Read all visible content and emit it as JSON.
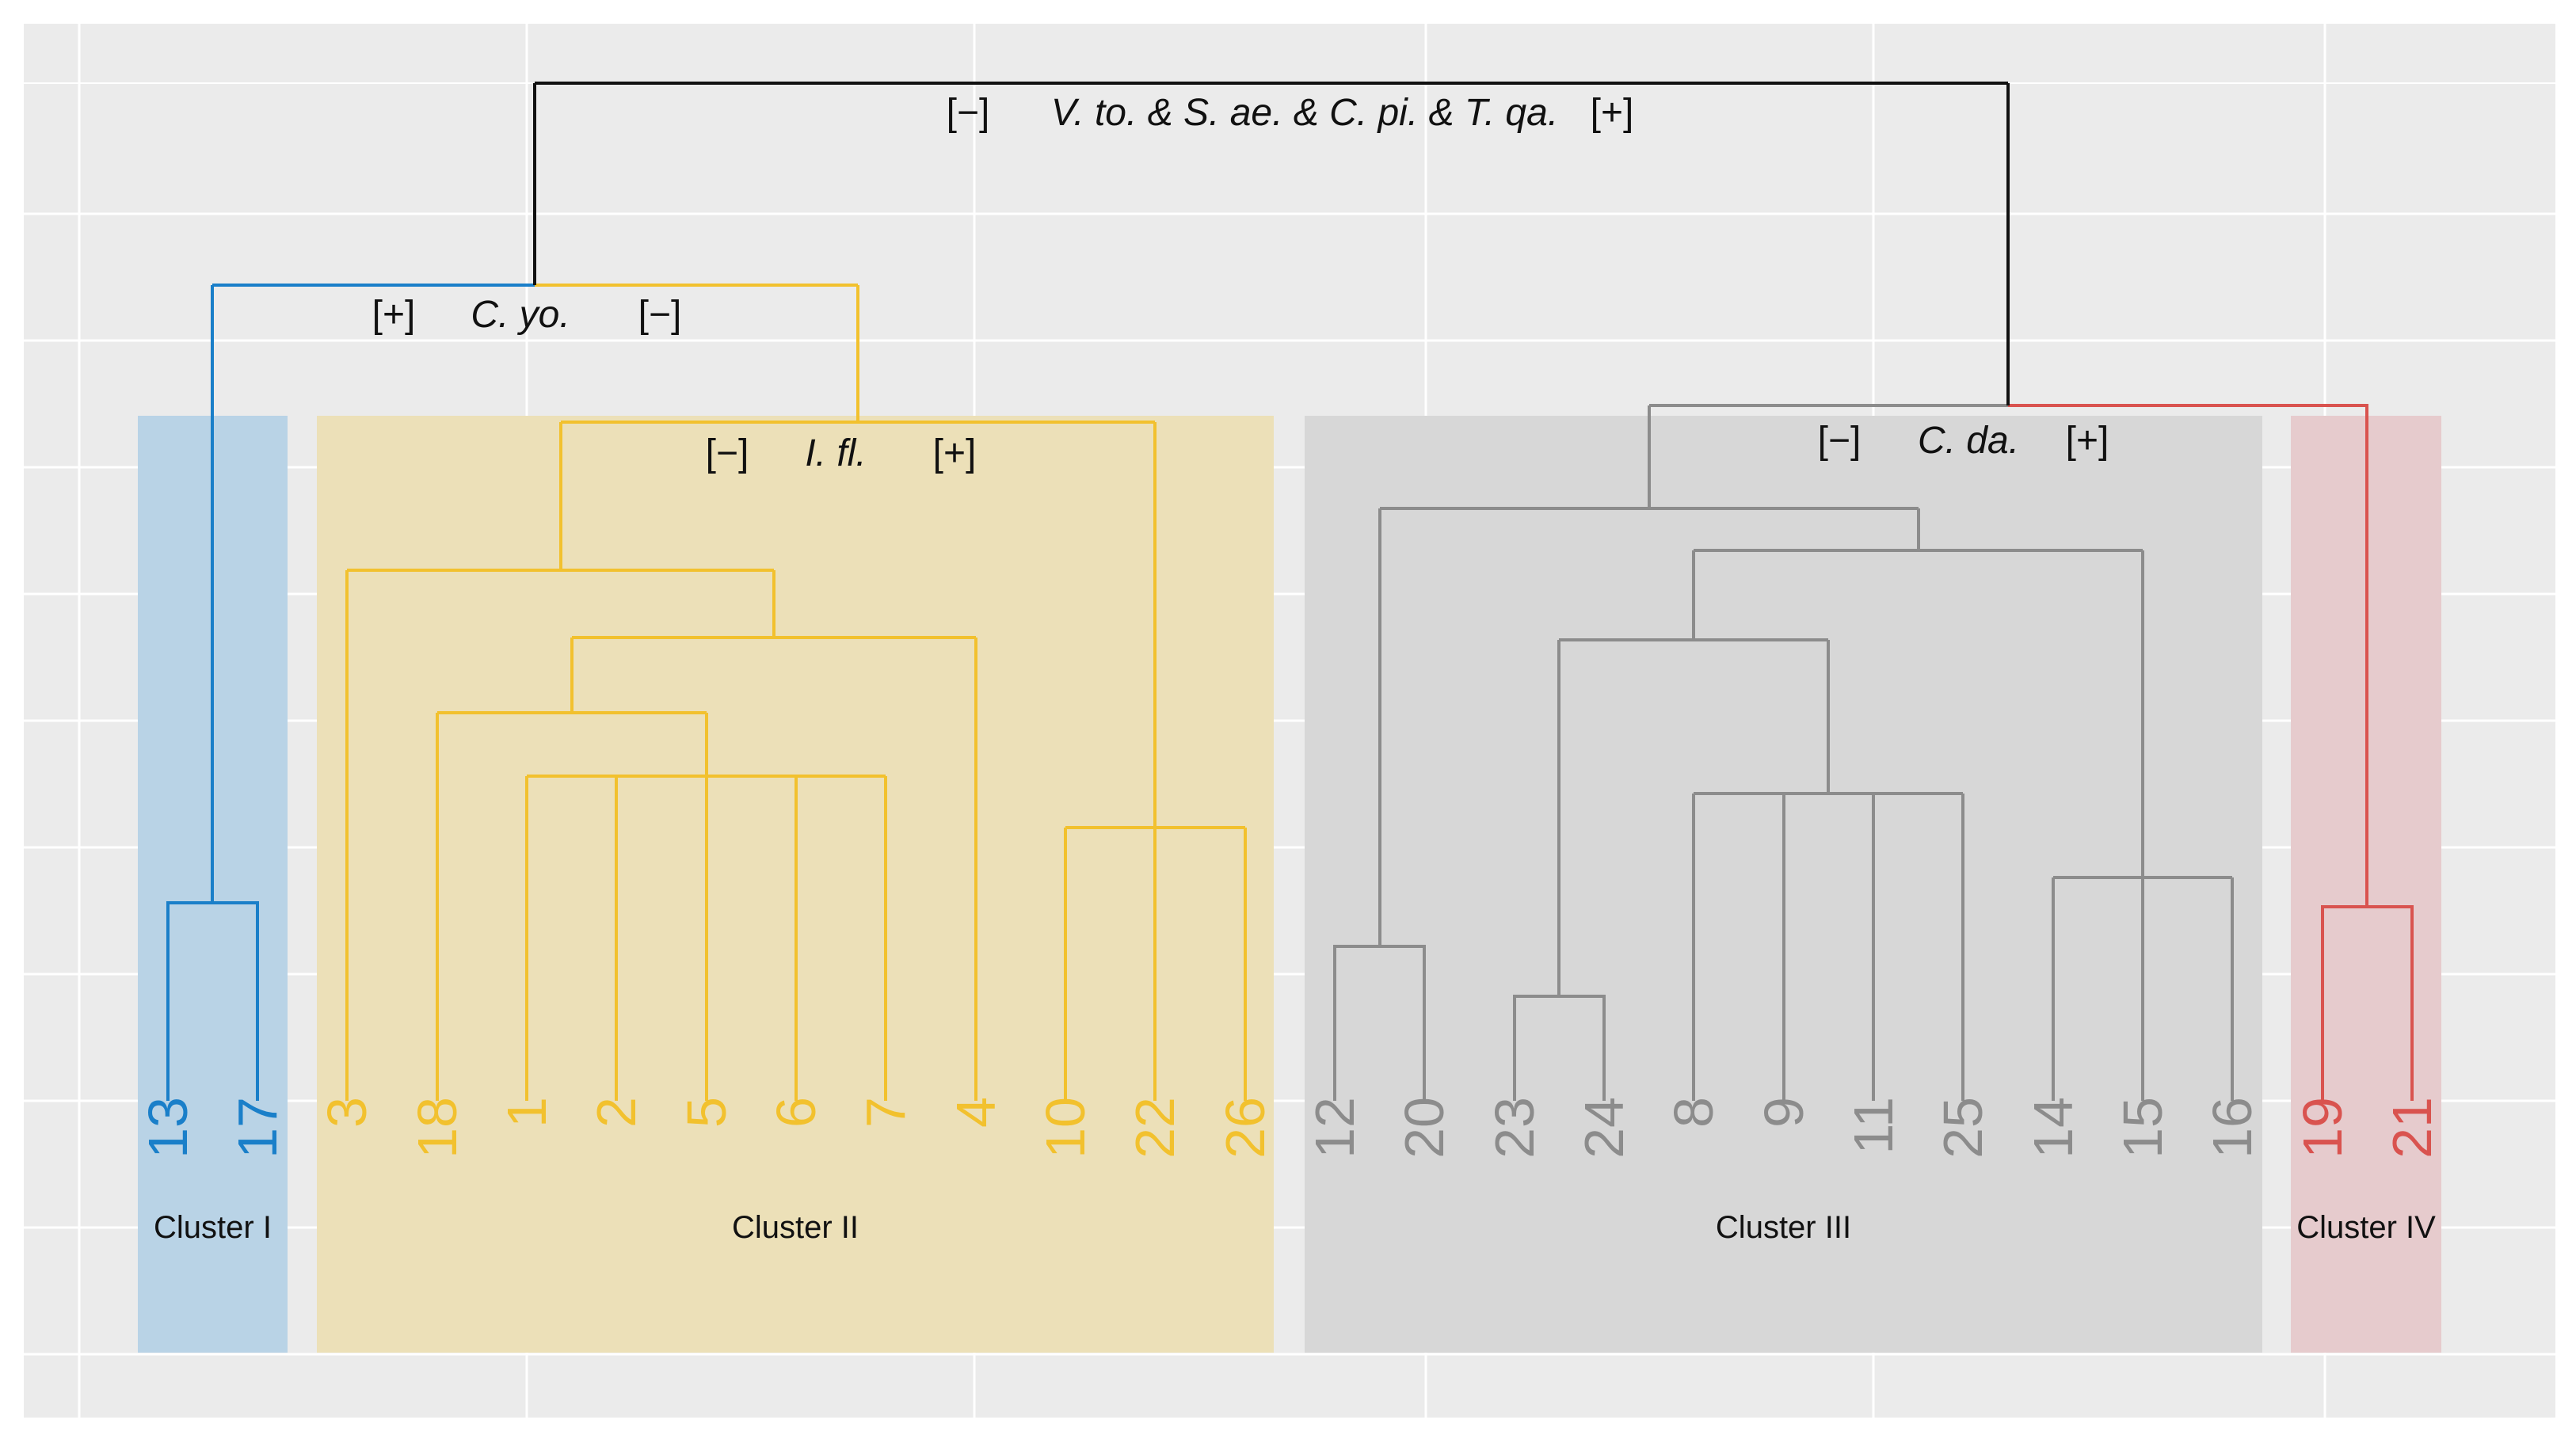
{
  "colors": {
    "panel_background": "#ebebeb",
    "grid": "#ffffff",
    "cluster_I": "#1a7fc9",
    "cluster_II": "#f2c12e",
    "cluster_III": "#8c8c8c",
    "cluster_IV": "#d9534f",
    "root": "#111111",
    "cluster_I_band": "#b9d3e6",
    "cluster_II_band": "#ece0b8",
    "cluster_III_band": "#d7d7d7",
    "cluster_IV_band": "#e6cbcd"
  },
  "clusters": [
    {
      "id": "I",
      "label": "Cluster I",
      "color_key": "cluster_I",
      "band_key": "cluster_I_band",
      "leaves": [
        "13",
        "17"
      ]
    },
    {
      "id": "II",
      "label": "Cluster II",
      "color_key": "cluster_II",
      "band_key": "cluster_II_band",
      "leaves": [
        "3",
        "18",
        "1",
        "2",
        "5",
        "6",
        "7",
        "4",
        "10",
        "22",
        "26"
      ]
    },
    {
      "id": "III",
      "label": "Cluster III",
      "color_key": "cluster_III",
      "band_key": "cluster_III_band",
      "leaves": [
        "12",
        "20",
        "23",
        "24",
        "8",
        "9",
        "11",
        "25",
        "14",
        "15",
        "16"
      ]
    },
    {
      "id": "IV",
      "label": "Cluster IV",
      "color_key": "cluster_IV",
      "band_key": "cluster_IV_band",
      "leaves": [
        "19",
        "21"
      ]
    }
  ],
  "splits": [
    {
      "id": "root",
      "left": "[−]",
      "taxa": "V. to. & S. ae. & C. pi. & T. qa.",
      "right": "[+]"
    },
    {
      "id": "cyo",
      "left": "[+]",
      "taxa": "C. yo.",
      "right": "[−]"
    },
    {
      "id": "ifl",
      "left": "[−]",
      "taxa": "I. fl.",
      "right": "[+]"
    },
    {
      "id": "cda",
      "left": "[−]",
      "taxa": "C. da.",
      "right": "[+]"
    }
  ]
}
